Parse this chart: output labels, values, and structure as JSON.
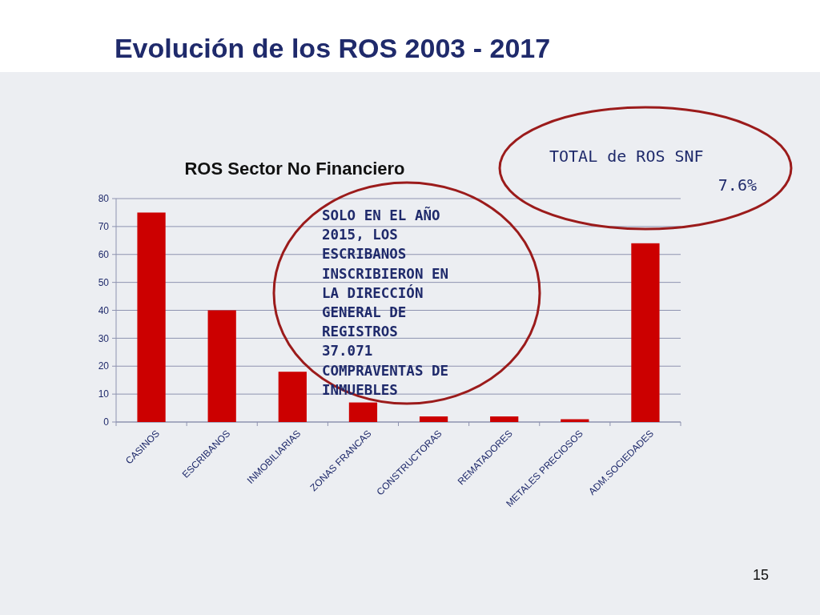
{
  "chart_data": {
    "type": "bar",
    "title": "Evolución de los ROS 2003 - 2017",
    "subtitle": "ROS Sector No Financiero",
    "categories": [
      "CASINOS",
      "ESCRIBANOS",
      "INMOBILIARIAS",
      "ZONAS FRANCAS",
      "CONSTRUCTORAS",
      "REMATADORES",
      "METALES PRECIOSOS",
      "ADM.SOCIEDADES"
    ],
    "values": [
      75,
      40,
      18,
      7,
      2,
      2,
      1,
      64
    ],
    "color": "#cc0000",
    "ylim": [
      0,
      80
    ],
    "yticks": [
      0,
      10,
      20,
      30,
      40,
      50,
      60,
      70,
      80
    ],
    "grid": "y",
    "annotations": [
      "TOTAL de ROS SNF\n7.6%",
      "SOLO EN EL AÑO\n2015, LOS\nESCRIBANOS\nINSCRIBIERON EN\nLA DIRECCIÓN\nGENERAL DE\nREGISTROS\n37.071\nCOMPRAVENTAS DE\nINMUEBLES",
      "15"
    ]
  }
}
